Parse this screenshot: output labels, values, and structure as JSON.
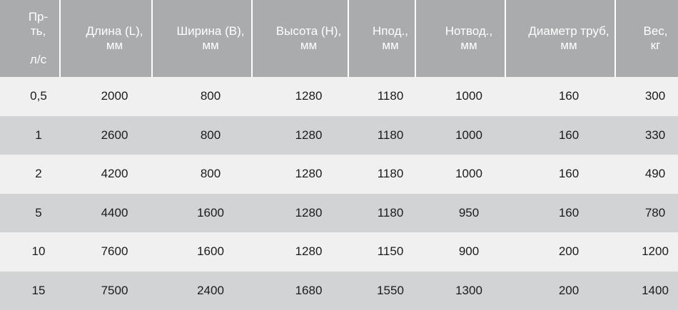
{
  "table": {
    "columns": [
      "Пр-\nть,\n\nл/с",
      "Длина (L),\nмм",
      "Ширина (B),\nмм",
      "Высота (H),\nмм",
      "Нпод.,\nмм",
      "Нотвод.,\nмм",
      "Диаметр труб,\nмм",
      "Вес,\nкг"
    ],
    "rows": [
      [
        "0,5",
        "2000",
        "800",
        "1280",
        "1180",
        "1000",
        "160",
        "300"
      ],
      [
        "1",
        "2600",
        "800",
        "1280",
        "1180",
        "1000",
        "160",
        "330"
      ],
      [
        "2",
        "4200",
        "800",
        "1280",
        "1180",
        "1000",
        "160",
        "490"
      ],
      [
        "5",
        "4400",
        "1600",
        "1280",
        "1180",
        "950",
        "160",
        "780"
      ],
      [
        "10",
        "7600",
        "1600",
        "1280",
        "1150",
        "900",
        "200",
        "1200"
      ],
      [
        "15",
        "7500",
        "2400",
        "1680",
        "1550",
        "1300",
        "200",
        "1400"
      ]
    ]
  },
  "colors": {
    "header_bg": "#a9abad",
    "header_text": "#ffffff",
    "row_light": "#f0f0f1",
    "row_dark": "#d2d3d5",
    "body_text": "#1b1b1b",
    "separator": "#ffffff"
  }
}
